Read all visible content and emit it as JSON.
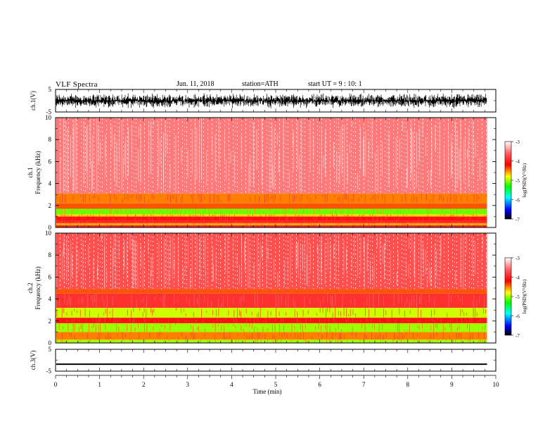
{
  "header": {
    "title": "VLF Spectra",
    "date": "Jun. 11, 2018",
    "station": "station=ATH",
    "start": "start UT = 9 : 10: 1"
  },
  "chart_data": [
    {
      "type": "line",
      "title": "",
      "ylabel": "ch.1(V)",
      "ylim": [
        -5,
        5
      ],
      "yticks": [
        "5",
        "-5"
      ],
      "xlim": [
        0,
        10
      ],
      "series": [
        {
          "values": [
            -3.5,
            3.5
          ]
        }
      ]
    },
    {
      "type": "heatmap",
      "ylabel_line1": "ch.1",
      "ylabel_line2": "Frequency (kHz)",
      "ylim": [
        0,
        10
      ],
      "yticks": [
        "0",
        "2",
        "4",
        "6",
        "8",
        "10"
      ],
      "xlim": [
        0,
        10
      ],
      "colorbar": {
        "label": "log(PSD)(V²/Hz)",
        "ticks": [
          "-3",
          "-4",
          "-5",
          "-6",
          "-7"
        ],
        "range": [
          -7,
          -3
        ]
      },
      "bands": [
        {
          "f": [
            0.0,
            0.2
          ],
          "level": -4.0
        },
        {
          "f": [
            0.2,
            0.4
          ],
          "level": -4.6
        },
        {
          "f": [
            0.4,
            0.6
          ],
          "level": -4.0
        },
        {
          "f": [
            0.6,
            1.0
          ],
          "level": -4.1
        },
        {
          "f": [
            1.0,
            1.2
          ],
          "level": -4.7
        },
        {
          "f": [
            1.2,
            1.7
          ],
          "level": -5.1
        },
        {
          "f": [
            1.7,
            2.2
          ],
          "level": -4.4
        },
        {
          "f": [
            2.2,
            3.1
          ],
          "level": -4.5
        },
        {
          "f": [
            3.1,
            10.0
          ],
          "level": -3.5
        }
      ]
    },
    {
      "type": "heatmap",
      "ylabel_line1": "ch.2",
      "ylabel_line2": "Frequency (kHz)",
      "ylim": [
        0,
        10
      ],
      "yticks": [
        "0",
        "2",
        "4",
        "6",
        "8",
        "10"
      ],
      "xlim": [
        0,
        10
      ],
      "colorbar": {
        "label": "log(PSD)(V²/Hz)",
        "ticks": [
          "-3",
          "-4",
          "-5",
          "-6",
          "-7"
        ],
        "range": [
          -7,
          -3
        ]
      },
      "bands": [
        {
          "f": [
            0.0,
            0.3
          ],
          "level": -5.0
        },
        {
          "f": [
            0.3,
            1.0
          ],
          "level": -4.5
        },
        {
          "f": [
            1.0,
            1.8
          ],
          "level": -5.0
        },
        {
          "f": [
            1.8,
            2.3
          ],
          "level": -4.1
        },
        {
          "f": [
            2.3,
            3.2
          ],
          "level": -4.9
        },
        {
          "f": [
            3.2,
            4.5
          ],
          "level": -3.9
        },
        {
          "f": [
            4.5,
            4.9
          ],
          "level": -4.4
        },
        {
          "f": [
            4.9,
            10.0
          ],
          "level": -3.7
        }
      ]
    },
    {
      "type": "line",
      "ylabel": "ch.3(V)",
      "ylim": [
        -5,
        5
      ],
      "yticks": [
        "5",
        "-5"
      ],
      "xlim": [
        0,
        10
      ],
      "xlabel": "Time (min)",
      "xticks": [
        "0",
        "1",
        "2",
        "3",
        "4",
        "5",
        "6",
        "7",
        "8",
        "9",
        "10"
      ],
      "series": [
        {
          "values": [
            -2.0,
            -1.5
          ]
        }
      ]
    }
  ]
}
